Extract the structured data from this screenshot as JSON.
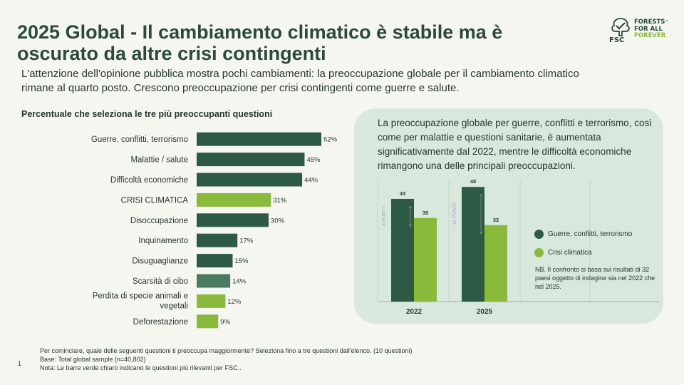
{
  "title": "2025 Global - Il cambiamento climatico è stabile ma è oscurato da altre crisi contingenti",
  "subtitle": "L'attenzione dell'opinione pubblica mostra pochi cambiamenti: la preoccupazione globale per il cambiamento climatico rimane al quarto posto. Crescono preoccupazione per crisi contingenti come guerre e salute.",
  "logo": {
    "tagline_1": "FORESTS",
    "tagline_2": "FOR ALL",
    "tagline_3": "FOREVER",
    "trademark": "™",
    "brand": "FSC",
    "icon": "fsc-tree-check-icon"
  },
  "chart_heading": "Percentuale che seleziona le tre più preoccupanti questioni",
  "panel_text": "La preoccupazione globale per guerre, conflitti e terrorismo, così come per malattie e questioni sanitarie, è aumentata significativamente dal 2022, mentre le difficoltà economiche rimangono una delle principali preoccupazioni.",
  "legend": [
    {
      "label": "Guerre, conflitti, terrorismo",
      "color": "#2d5a45"
    },
    {
      "label": "Crisi climatica",
      "color": "#8aba3c"
    }
  ],
  "nb_text": "NB. Il confronto si basa sui risultati di 32 paesi oggetto di indagine sia nel 2022 che nel 2025.",
  "page_number": "1",
  "footnotes": [
    "Per cominciare, quale delle seguenti questioni ti preoccupa maggiormente? Seleziona fino a tre questioni dall'elenco. (10 questioni)",
    "Base: Total global sample (n=40,802)",
    "Nota: Le barre verde chiaro indicano le questioni più rilevanti per  FSC.."
  ],
  "colors": {
    "dark_green": "#2d5a45",
    "light_green": "#8aba3c",
    "mid_green": "#4a7a62",
    "gap_label": "#a7bedb"
  },
  "chart_data": [
    {
      "type": "bar",
      "orientation": "horizontal",
      "title": "Percentuale che seleziona le tre più preoccupanti questioni",
      "unit": "%",
      "xlim": [
        0,
        52
      ],
      "categories": [
        "Guerre, conflitti, terrorismo",
        "Malattie / salute",
        "Difficoltà economiche",
        "CRISI CLIMATICA",
        "Disoccupazione",
        "Inquinamento",
        "Disuguaglianze",
        "Scarsità di cibo",
        "Perdita di specie animali e vegetali",
        "Deforestazione"
      ],
      "values": [
        52,
        45,
        44,
        31,
        30,
        17,
        15,
        14,
        12,
        9
      ],
      "value_labels": [
        "52%",
        "45%",
        "44%",
        "31%",
        "30%",
        "17%",
        "15%",
        "14%",
        "12%",
        "9%"
      ],
      "bar_colors": [
        "#2d5a45",
        "#2d5a45",
        "#2d5a45",
        "#8aba3c",
        "#2d5a45",
        "#2d5a45",
        "#2d5a45",
        "#4a7a62",
        "#8aba3c",
        "#8aba3c"
      ]
    },
    {
      "type": "bar",
      "orientation": "vertical",
      "categories": [
        "2022",
        "2025"
      ],
      "ylim": [
        0,
        50
      ],
      "series": [
        {
          "name": "Guerre, conflitti, terrorismo",
          "values": [
            43,
            48
          ],
          "color": "#2d5a45"
        },
        {
          "name": "Crisi climatica",
          "values": [
            35,
            32
          ],
          "color": "#8aba3c"
        }
      ],
      "gap_annotations": [
        "8 PUNTI",
        "16 PUNTI"
      ]
    }
  ]
}
